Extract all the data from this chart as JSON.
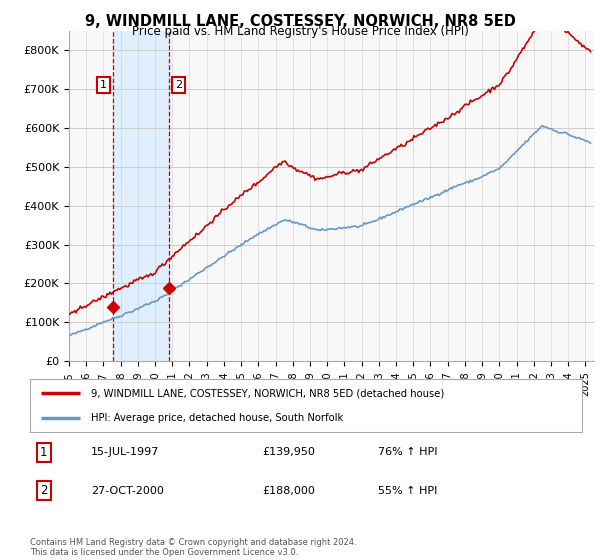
{
  "title": "9, WINDMILL LANE, COSTESSEY, NORWICH, NR8 5ED",
  "subtitle": "Price paid vs. HM Land Registry's House Price Index (HPI)",
  "legend_label_red": "9, WINDMILL LANE, COSTESSEY, NORWICH, NR8 5ED (detached house)",
  "legend_label_blue": "HPI: Average price, detached house, South Norfolk",
  "table_rows": [
    {
      "num": "1",
      "date": "15-JUL-1997",
      "price": "£139,950",
      "change": "76% ↑ HPI"
    },
    {
      "num": "2",
      "date": "27-OCT-2000",
      "price": "£188,000",
      "change": "55% ↑ HPI"
    }
  ],
  "footnote": "Contains HM Land Registry data © Crown copyright and database right 2024.\nThis data is licensed under the Open Government Licence v3.0.",
  "ylim": [
    0,
    850000
  ],
  "yticks": [
    0,
    100000,
    200000,
    300000,
    400000,
    500000,
    600000,
    700000,
    800000
  ],
  "ytick_labels": [
    "£0",
    "£100K",
    "£200K",
    "£300K",
    "£400K",
    "£500K",
    "£600K",
    "£700K",
    "£800K"
  ],
  "xlim_start": 1995.0,
  "xlim_end": 2025.5,
  "xtick_years": [
    1995,
    1996,
    1997,
    1998,
    1999,
    2000,
    2001,
    2002,
    2003,
    2004,
    2005,
    2006,
    2007,
    2008,
    2009,
    2010,
    2011,
    2012,
    2013,
    2014,
    2015,
    2016,
    2017,
    2018,
    2019,
    2020,
    2021,
    2022,
    2023,
    2024,
    2025
  ],
  "sale1_x": 1997.54,
  "sale1_y": 139950,
  "sale2_x": 2000.82,
  "sale2_y": 188000,
  "red_color": "#cc0000",
  "blue_color": "#6699cc",
  "vline_color": "#cc0000",
  "shade_color": "#ddeeff",
  "background_plot": "#f8f8f8",
  "background_fig": "#ffffff",
  "grid_color": "#cccccc"
}
